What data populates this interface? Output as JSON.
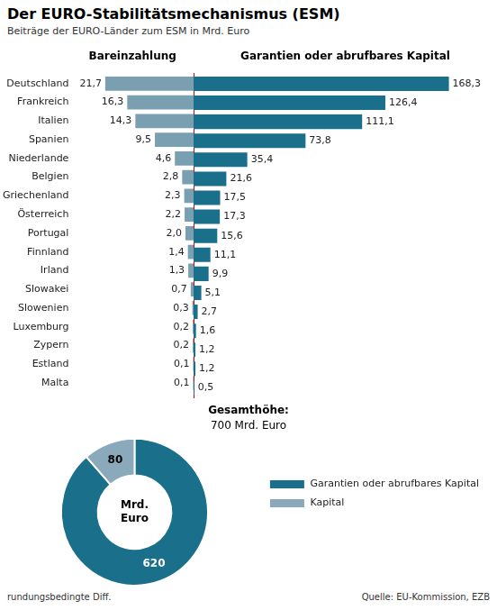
{
  "chart_data": [
    {
      "type": "bar",
      "orientation": "horizontal",
      "title": "Der EURO-Stabilitätsmechanismus (ESM)",
      "subtitle": "Beiträge der EURO-Länder zum ESM in Mrd. Euro",
      "xlabel": "Bareinzahlung",
      "categories": [
        "Deutschland",
        "Frankreich",
        "Italien",
        "Spanien",
        "Niederlande",
        "Belgien",
        "Griechenland",
        "Österreich",
        "Portugal",
        "Finnland",
        "Irland",
        "Slowakei",
        "Slowenien",
        "Luxemburg",
        "Zypern",
        "Estland",
        "Malta"
      ],
      "values": [
        21.7,
        16.3,
        14.3,
        9.5,
        4.6,
        2.8,
        2.3,
        2.2,
        2.0,
        1.4,
        1.3,
        0.7,
        0.3,
        0.2,
        0.2,
        0.1,
        0.1
      ],
      "value_labels": [
        "21,7",
        "16,3",
        "14,3",
        "9,5",
        "4,6",
        "2,8",
        "2,3",
        "2,2",
        "2,0",
        "1,4",
        "1,3",
        "0,7",
        "0,3",
        "0,2",
        "0,2",
        "0,1",
        "0,1"
      ],
      "color": "#7a9fb0",
      "xlim": [
        0,
        30
      ],
      "grid": false,
      "tick_labels": "y",
      "data_labels": true,
      "annotations": [
        "rundungsbedingte Diff.",
        "Quelle: EU-Kommission, EZB"
      ]
    },
    {
      "type": "bar",
      "orientation": "horizontal",
      "xlabel": "Garantien oder abrufbares Kapital",
      "categories": [
        "Deutschland",
        "Frankreich",
        "Italien",
        "Spanien",
        "Niederlande",
        "Belgien",
        "Griechenland",
        "Österreich",
        "Portugal",
        "Finnland",
        "Irland",
        "Slowakei",
        "Slowenien",
        "Luxemburg",
        "Zypern",
        "Estland",
        "Malta"
      ],
      "values": [
        168.3,
        126.4,
        111.1,
        73.8,
        35.4,
        21.6,
        17.5,
        17.3,
        15.6,
        11.1,
        9.9,
        5.1,
        2.7,
        1.6,
        1.2,
        1.2,
        0.5
      ],
      "value_labels": [
        "168,3",
        "126,4",
        "111,1",
        "73,8",
        "35,4",
        "21,6",
        "17,5",
        "17,3",
        "15,6",
        "11,1",
        "9,9",
        "5,1",
        "2,7",
        "1,6",
        "1,2",
        "1,2",
        "0,5"
      ],
      "color": "#1a6f8a",
      "xlim": [
        0,
        200
      ],
      "grid": false,
      "tick_labels": false,
      "data_labels": true
    },
    {
      "type": "doughnut",
      "title": "Gesamthöhe:",
      "subtitle": "700 Mrd. Euro",
      "categories": [
        "Garantien oder abrufbares Kapital",
        "Kapital"
      ],
      "values": [
        620,
        80
      ],
      "colors": [
        "#1a6f8a",
        "#8aaabb"
      ],
      "data_labels": true,
      "legend": "right",
      "annotations": [
        "Mrd.\nEuro"
      ]
    }
  ]
}
